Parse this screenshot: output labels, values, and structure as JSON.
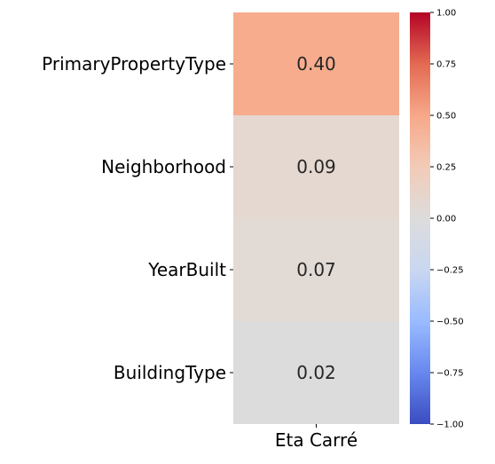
{
  "chart_data": {
    "type": "heatmap",
    "rows": [
      "PrimaryPropertyType",
      "Neighborhood",
      "YearBuilt",
      "BuildingType"
    ],
    "columns": [
      "Eta Carré"
    ],
    "values": [
      [
        0.4
      ],
      [
        0.09
      ],
      [
        0.07
      ],
      [
        0.02
      ]
    ],
    "value_labels": [
      "0.40",
      "0.09",
      "0.07",
      "0.02"
    ],
    "colormap": "coolwarm",
    "vmin": -1.0,
    "vmax": 1.0,
    "colorbar_ticks": [
      1.0,
      0.75,
      0.5,
      0.25,
      0.0,
      -0.25,
      -0.5,
      -0.75,
      -1.0
    ],
    "colorbar_tick_labels": [
      "1.00",
      "0.75",
      "0.50",
      "0.25",
      "0.00",
      "−0.25",
      "−0.50",
      "−0.75",
      "−1.00"
    ],
    "cell_colors": [
      "#f7ac8e",
      "#e5d8d1",
      "#e2dad5",
      "#dddcdc"
    ],
    "colorbar_stops": [
      "#3b4cc0",
      "#6788ee",
      "#9abbff",
      "#c9d7f0",
      "#dddcdc",
      "#f2cbb7",
      "#f7a889",
      "#e36a53",
      "#b40426"
    ]
  }
}
